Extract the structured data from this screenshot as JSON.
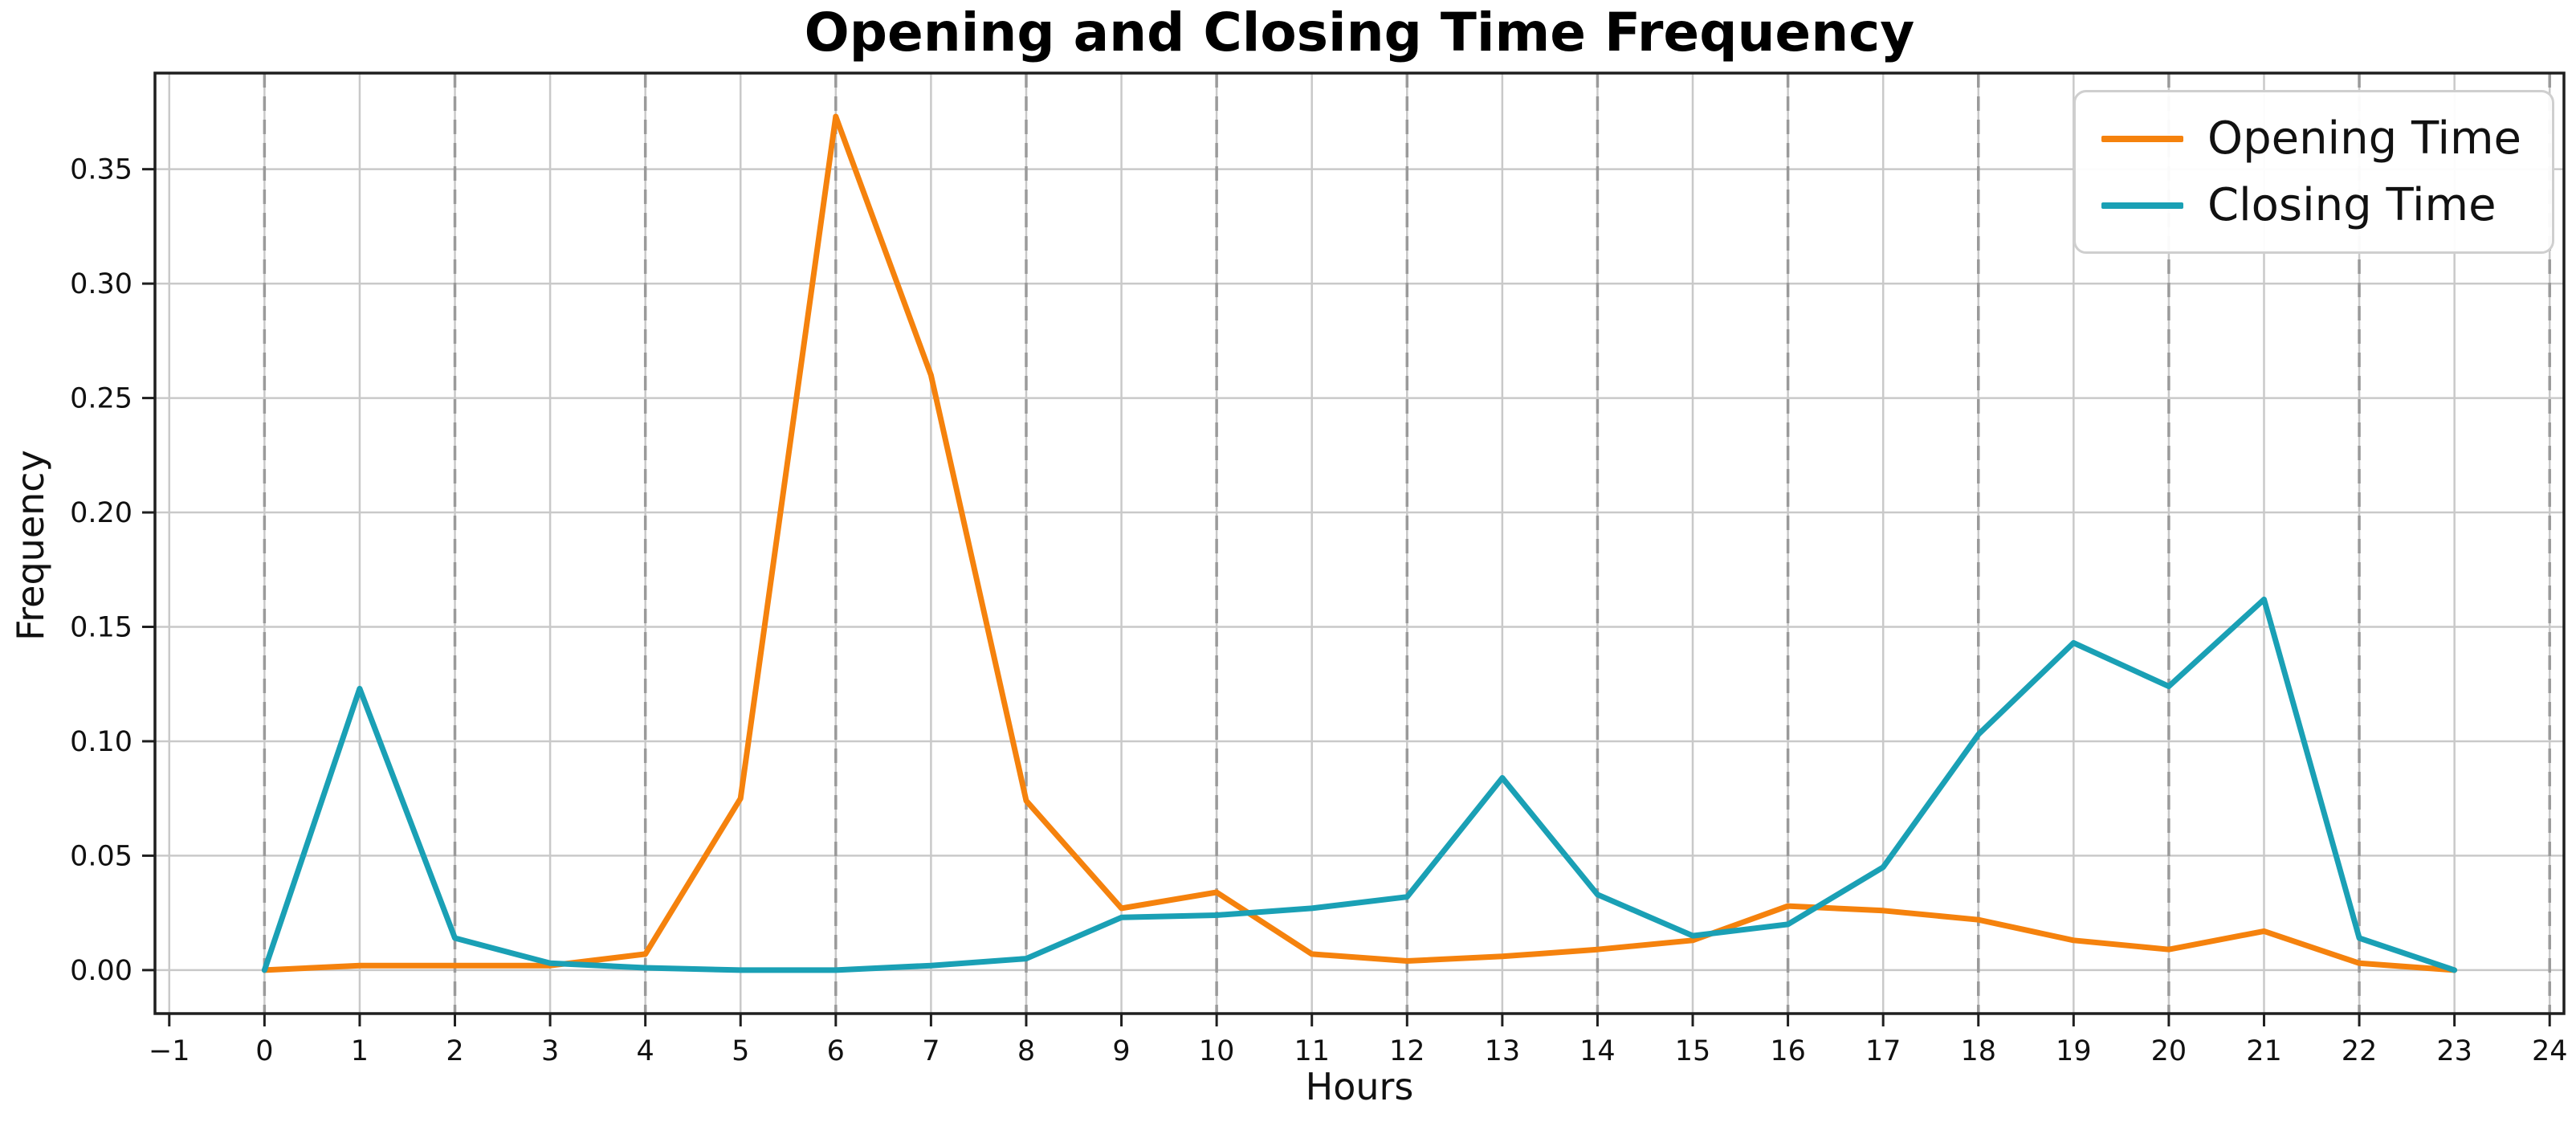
{
  "chart_data": {
    "type": "line",
    "title": "Opening and Closing Time Frequency",
    "xlabel": "Hours",
    "ylabel": "Frequency",
    "x": [
      0,
      1,
      2,
      3,
      4,
      5,
      6,
      7,
      8,
      9,
      10,
      11,
      12,
      13,
      14,
      15,
      16,
      17,
      18,
      19,
      20,
      21,
      22,
      23
    ],
    "series": [
      {
        "name": "Opening Time",
        "color": "#f5820d",
        "values": [
          0.0,
          0.002,
          0.002,
          0.002,
          0.007,
          0.075,
          0.373,
          0.26,
          0.074,
          0.027,
          0.034,
          0.007,
          0.004,
          0.006,
          0.009,
          0.013,
          0.028,
          0.026,
          0.022,
          0.013,
          0.009,
          0.017,
          0.003,
          0.0
        ]
      },
      {
        "name": "Closing Time",
        "color": "#1aa0b5",
        "values": [
          0.0,
          0.123,
          0.014,
          0.003,
          0.001,
          0.0,
          0.0,
          0.002,
          0.005,
          0.023,
          0.024,
          0.027,
          0.032,
          0.084,
          0.033,
          0.015,
          0.02,
          0.045,
          0.103,
          0.143,
          0.124,
          0.162,
          0.014,
          0.0
        ]
      }
    ],
    "xlim": [
      -1.15,
      24.15
    ],
    "ylim": [
      -0.019,
      0.392
    ],
    "x_ticks": [
      -1,
      0,
      1,
      2,
      3,
      4,
      5,
      6,
      7,
      8,
      9,
      10,
      11,
      12,
      13,
      14,
      15,
      16,
      17,
      18,
      19,
      20,
      21,
      22,
      23,
      24
    ],
    "y_ticks": [
      0.0,
      0.05,
      0.1,
      0.15,
      0.2,
      0.25,
      0.3,
      0.35
    ],
    "grid": {
      "solid_every_tick": true,
      "dashed_vertical_at_even_hours": true
    },
    "legend_position": "upper right"
  }
}
